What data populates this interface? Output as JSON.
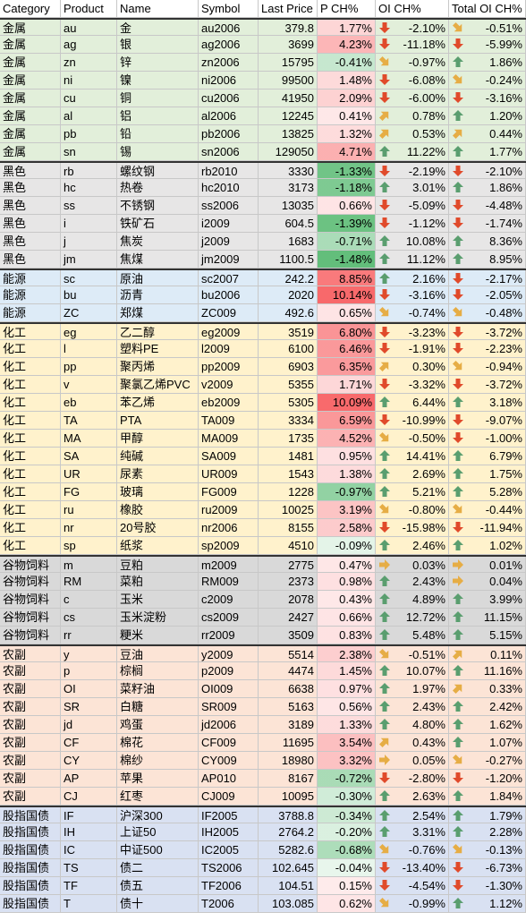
{
  "table": {
    "header": [
      "Category",
      "Product",
      "Name",
      "Symbol",
      "Last Price",
      "P CH%",
      "OI CH%",
      "Total OI CH%"
    ],
    "rows": [
      [
        "金属",
        "au",
        "金",
        "au2006",
        "379.8",
        "1.77%",
        "-2.10%",
        "-0.51%"
      ],
      [
        "金属",
        "ag",
        "银",
        "ag2006",
        "3699",
        "4.23%",
        "-11.18%",
        "-5.99%"
      ],
      [
        "金属",
        "zn",
        "锌",
        "zn2006",
        "15795",
        "-0.41%",
        "-0.97%",
        "1.86%"
      ],
      [
        "金属",
        "ni",
        "镍",
        "ni2006",
        "99500",
        "1.48%",
        "-6.08%",
        "-0.24%"
      ],
      [
        "金属",
        "cu",
        "铜",
        "cu2006",
        "41950",
        "2.09%",
        "-6.00%",
        "-3.16%"
      ],
      [
        "金属",
        "al",
        "铝",
        "al2006",
        "12245",
        "0.41%",
        "0.78%",
        "1.20%"
      ],
      [
        "金属",
        "pb",
        "铅",
        "pb2006",
        "13825",
        "1.32%",
        "0.53%",
        "0.44%"
      ],
      [
        "金属",
        "sn",
        "锡",
        "sn2006",
        "129050",
        "4.71%",
        "11.22%",
        "1.77%"
      ],
      [
        "黑色",
        "rb",
        "螺纹钢",
        "rb2010",
        "3330",
        "-1.33%",
        "-2.19%",
        "-2.10%"
      ],
      [
        "黑色",
        "hc",
        "热卷",
        "hc2010",
        "3173",
        "-1.18%",
        "3.01%",
        "1.86%"
      ],
      [
        "黑色",
        "ss",
        "不锈钢",
        "ss2006",
        "13035",
        "0.66%",
        "-5.09%",
        "-4.48%"
      ],
      [
        "黑色",
        "i",
        "铁矿石",
        "i2009",
        "604.5",
        "-1.39%",
        "-1.12%",
        "-1.74%"
      ],
      [
        "黑色",
        "j",
        "焦炭",
        "j2009",
        "1683",
        "-0.71%",
        "10.08%",
        "8.36%"
      ],
      [
        "黑色",
        "jm",
        "焦煤",
        "jm2009",
        "1100.5",
        "-1.48%",
        "11.12%",
        "8.95%"
      ],
      [
        "能源",
        "sc",
        "原油",
        "sc2007",
        "242.2",
        "8.85%",
        "2.16%",
        "-2.17%"
      ],
      [
        "能源",
        "bu",
        "沥青",
        "bu2006",
        "2020",
        "10.14%",
        "-3.16%",
        "-2.05%"
      ],
      [
        "能源",
        "ZC",
        "郑煤",
        "ZC009",
        "492.6",
        "0.65%",
        "-0.74%",
        "-0.48%"
      ],
      [
        "化工",
        "eg",
        "乙二醇",
        "eg2009",
        "3519",
        "6.80%",
        "-3.23%",
        "-3.72%"
      ],
      [
        "化工",
        "l",
        "塑料PE",
        "l2009",
        "6100",
        "6.46%",
        "-1.91%",
        "-2.23%"
      ],
      [
        "化工",
        "pp",
        "聚丙烯",
        "pp2009",
        "6903",
        "6.35%",
        "0.30%",
        "-0.94%"
      ],
      [
        "化工",
        "v",
        "聚氯乙烯PVC",
        "v2009",
        "5355",
        "1.71%",
        "-3.32%",
        "-3.72%"
      ],
      [
        "化工",
        "eb",
        "苯乙烯",
        "eb2009",
        "5305",
        "10.09%",
        "6.44%",
        "3.18%"
      ],
      [
        "化工",
        "TA",
        "PTA",
        "TA009",
        "3334",
        "6.59%",
        "-10.99%",
        "-9.07%"
      ],
      [
        "化工",
        "MA",
        "甲醇",
        "MA009",
        "1735",
        "4.52%",
        "-0.50%",
        "-1.00%"
      ],
      [
        "化工",
        "SA",
        "纯碱",
        "SA009",
        "1481",
        "0.95%",
        "14.41%",
        "6.79%"
      ],
      [
        "化工",
        "UR",
        "尿素",
        "UR009",
        "1543",
        "1.38%",
        "2.69%",
        "1.75%"
      ],
      [
        "化工",
        "FG",
        "玻璃",
        "FG009",
        "1228",
        "-0.97%",
        "5.21%",
        "5.28%"
      ],
      [
        "化工",
        "ru",
        "橡胶",
        "ru2009",
        "10025",
        "3.19%",
        "-0.80%",
        "-0.44%"
      ],
      [
        "化工",
        "nr",
        "20号胶",
        "nr2006",
        "8155",
        "2.58%",
        "-15.98%",
        "-11.94%"
      ],
      [
        "化工",
        "sp",
        "纸浆",
        "sp2009",
        "4510",
        "-0.09%",
        "2.46%",
        "1.02%"
      ],
      [
        "谷物饲料",
        "m",
        "豆粕",
        "m2009",
        "2775",
        "0.47%",
        "0.03%",
        "0.01%"
      ],
      [
        "谷物饲料",
        "RM",
        "菜粕",
        "RM009",
        "2373",
        "0.98%",
        "2.43%",
        "0.04%"
      ],
      [
        "谷物饲料",
        "c",
        "玉米",
        "c2009",
        "2078",
        "0.43%",
        "4.89%",
        "3.99%"
      ],
      [
        "谷物饲料",
        "cs",
        "玉米淀粉",
        "cs2009",
        "2427",
        "0.66%",
        "12.72%",
        "11.15%"
      ],
      [
        "谷物饲料",
        "rr",
        "粳米",
        "rr2009",
        "3509",
        "0.83%",
        "5.48%",
        "5.15%"
      ],
      [
        "农副",
        "y",
        "豆油",
        "y2009",
        "5514",
        "2.38%",
        "-0.51%",
        "0.11%"
      ],
      [
        "农副",
        "p",
        "棕榈",
        "p2009",
        "4474",
        "1.45%",
        "10.07%",
        "11.16%"
      ],
      [
        "农副",
        "OI",
        "菜籽油",
        "OI009",
        "6638",
        "0.97%",
        "1.97%",
        "0.33%"
      ],
      [
        "农副",
        "SR",
        "白糖",
        "SR009",
        "5163",
        "0.56%",
        "2.43%",
        "2.42%"
      ],
      [
        "农副",
        "jd",
        "鸡蛋",
        "jd2006",
        "3189",
        "1.33%",
        "4.80%",
        "1.62%"
      ],
      [
        "农副",
        "CF",
        "棉花",
        "CF009",
        "11695",
        "3.54%",
        "0.43%",
        "1.07%"
      ],
      [
        "农副",
        "CY",
        "棉纱",
        "CY009",
        "18980",
        "3.32%",
        "0.05%",
        "-0.27%"
      ],
      [
        "农副",
        "AP",
        "苹果",
        "AP010",
        "8167",
        "-0.72%",
        "-2.80%",
        "-1.20%"
      ],
      [
        "农副",
        "CJ",
        "红枣",
        "CJ009",
        "10095",
        "-0.30%",
        "2.63%",
        "1.84%"
      ],
      [
        "股指国债",
        "IF",
        "沪深300",
        "IF2005",
        "3788.8",
        "-0.34%",
        "2.54%",
        "1.79%"
      ],
      [
        "股指国债",
        "IH",
        "上证50",
        "IH2005",
        "2764.2",
        "-0.20%",
        "3.31%",
        "2.28%"
      ],
      [
        "股指国债",
        "IC",
        "中证500",
        "IC2005",
        "5282.6",
        "-0.68%",
        "-0.76%",
        "-0.13%"
      ],
      [
        "股指国债",
        "TS",
        "债二",
        "TS2006",
        "102.645",
        "-0.04%",
        "-13.40%",
        "-6.73%"
      ],
      [
        "股指国债",
        "TF",
        "债五",
        "TF2006",
        "104.51",
        "0.15%",
        "-4.54%",
        "-1.30%"
      ],
      [
        "股指国债",
        "T",
        "债十",
        "T2006",
        "103.085",
        "0.62%",
        "-0.99%",
        "1.12%"
      ]
    ]
  }
}
